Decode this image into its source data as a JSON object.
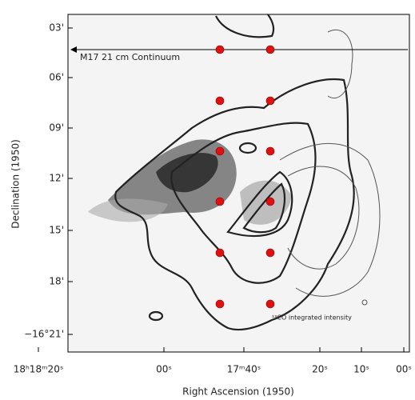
{
  "axes": {
    "x_label": "Right Ascension (1950)",
    "y_label": "Declination (1950)",
    "x_ticks": [
      "18ʰ18ᵐ20ˢ",
      "00ˢ",
      "17ᵐ40ˢ",
      "20ˢ",
      "10ˢ",
      "00ˢ"
    ],
    "y_ticks": [
      "03'",
      "06'",
      "09'",
      "12'",
      "15'",
      "18'",
      "−16°21'"
    ]
  },
  "annotations": [
    "M17 21 cm Continuum",
    "¹³CO integrated intensity"
  ]
}
